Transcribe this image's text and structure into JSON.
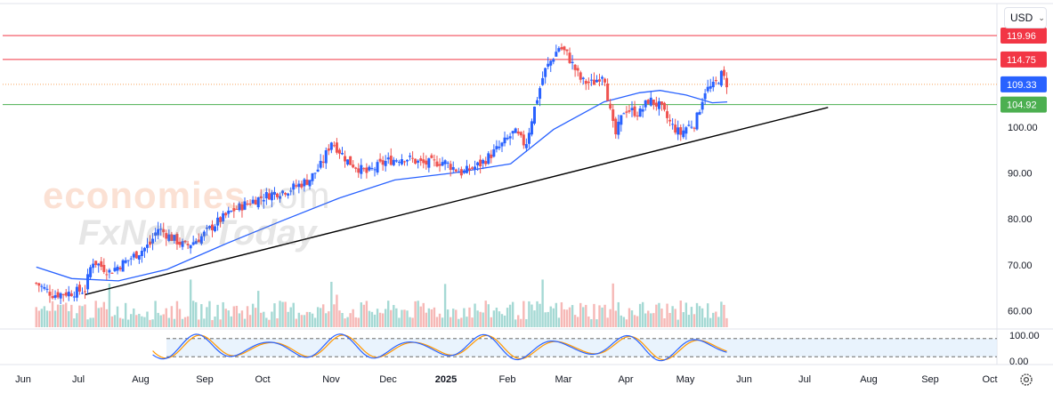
{
  "header": {
    "currency": "USD"
  },
  "watermark": {
    "line1_main": "economies",
    "line1_suffix": ".com",
    "line2": "FxNewsToday"
  },
  "colors": {
    "up": "#2962ff",
    "down": "#ef5350",
    "ma": "#2962ff",
    "resistance": "#f23645",
    "support": "#4caf50",
    "pivot": "#f7a35c",
    "trend": "#000000",
    "vol_up": "#8ecfc9",
    "vol_down": "#f4a6a4",
    "stoch_k": "#2962ff",
    "stoch_d": "#ff9800"
  },
  "chart_data": {
    "type": "candlestick",
    "y_axis": {
      "ticks": [
        "100.00",
        "90.00",
        "80.00",
        "70.00",
        "60.00"
      ],
      "range": [
        57,
        122
      ]
    },
    "x_axis": {
      "labels": [
        "Jun",
        "Jul",
        "Aug",
        "Sep",
        "Oct",
        "Nov",
        "Dec",
        "2025",
        "Feb",
        "Mar",
        "Apr",
        "May",
        "Jun",
        "Jul",
        "Aug",
        "Sep",
        "Oct"
      ]
    },
    "price_levels": [
      {
        "name": "resistance-2",
        "value": 119.96,
        "label": "119.96",
        "style": "solid",
        "color": "#f23645"
      },
      {
        "name": "resistance-1",
        "value": 114.75,
        "label": "114.75",
        "style": "solid",
        "color": "#f23645"
      },
      {
        "name": "last-price",
        "value": 109.33,
        "label": "109.33",
        "style": "dotted",
        "color": "#2962ff"
      },
      {
        "name": "support",
        "value": 104.92,
        "label": "104.92",
        "style": "solid",
        "color": "#4caf50"
      }
    ],
    "trendline": {
      "from": {
        "date": "2024-06-27",
        "value": 63.5
      },
      "to": {
        "date": "2025-07-30",
        "value": 104.3
      }
    },
    "price_path": [
      [
        "2024-06-01",
        66.0
      ],
      [
        "2024-06-10",
        63.5
      ],
      [
        "2024-06-20",
        64.0
      ],
      [
        "2024-06-27",
        64.5
      ],
      [
        "2024-07-01",
        71.0
      ],
      [
        "2024-07-10",
        68.5
      ],
      [
        "2024-07-20",
        71.0
      ],
      [
        "2024-08-01",
        74.5
      ],
      [
        "2024-08-05",
        78.0
      ],
      [
        "2024-08-12",
        76.0
      ],
      [
        "2024-08-20",
        74.0
      ],
      [
        "2024-08-28",
        76.0
      ],
      [
        "2024-09-05",
        79.0
      ],
      [
        "2024-09-15",
        82.0
      ],
      [
        "2024-09-25",
        84.0
      ],
      [
        "2024-10-05",
        85.5
      ],
      [
        "2024-10-15",
        86.5
      ],
      [
        "2024-10-25",
        88.5
      ],
      [
        "2024-11-01",
        92.0
      ],
      [
        "2024-11-06",
        97.0
      ],
      [
        "2024-11-15",
        92.5
      ],
      [
        "2024-11-25",
        90.0
      ],
      [
        "2024-12-05",
        92.5
      ],
      [
        "2024-12-15",
        93.5
      ],
      [
        "2024-12-25",
        92.0
      ],
      [
        "2025-01-05",
        92.5
      ],
      [
        "2025-01-15",
        90.0
      ],
      [
        "2025-01-25",
        92.0
      ],
      [
        "2025-02-05",
        96.0
      ],
      [
        "2025-02-12",
        99.0
      ],
      [
        "2025-02-18",
        96.0
      ],
      [
        "2025-02-22",
        103.0
      ],
      [
        "2025-02-28",
        112.0
      ],
      [
        "2025-03-08",
        117.5
      ],
      [
        "2025-03-12",
        116.0
      ],
      [
        "2025-03-20",
        110.0
      ],
      [
        "2025-03-26",
        109.5
      ],
      [
        "2025-04-01",
        112.0
      ],
      [
        "2025-04-04",
        104.0
      ],
      [
        "2025-04-07",
        98.0
      ],
      [
        "2025-04-12",
        104.0
      ],
      [
        "2025-04-20",
        103.0
      ],
      [
        "2025-04-25",
        106.0
      ],
      [
        "2025-05-01",
        104.5
      ],
      [
        "2025-05-07",
        100.5
      ],
      [
        "2025-05-12",
        98.5
      ],
      [
        "2025-05-15",
        100.0
      ],
      [
        "2025-05-20",
        101.0
      ],
      [
        "2025-05-25",
        108.0
      ],
      [
        "2025-05-30",
        109.0
      ],
      [
        "2025-06-03",
        111.5
      ],
      [
        "2025-06-06",
        109.33
      ]
    ],
    "ma_path": [
      [
        "2024-06-01",
        69.5
      ],
      [
        "2024-06-20",
        67.0
      ],
      [
        "2024-07-15",
        66.5
      ],
      [
        "2024-08-10",
        69.0
      ],
      [
        "2024-09-10",
        74.5
      ],
      [
        "2024-10-10",
        79.5
      ],
      [
        "2024-11-10",
        84.5
      ],
      [
        "2024-12-10",
        88.5
      ],
      [
        "2025-01-10",
        90.0
      ],
      [
        "2025-02-10",
        92.0
      ],
      [
        "2025-03-05",
        99.5
      ],
      [
        "2025-04-01",
        105.5
      ],
      [
        "2025-04-20",
        107.5
      ],
      [
        "2025-05-01",
        108.0
      ],
      [
        "2025-05-15",
        107.0
      ],
      [
        "2025-05-29",
        105.3
      ],
      [
        "2025-06-06",
        105.5
      ]
    ],
    "volume": {
      "note": "relative volume bars at bottom of price pane"
    },
    "stochastic": {
      "ticks": [
        "100.00",
        "0.00"
      ],
      "levels": [
        80,
        20
      ]
    }
  }
}
